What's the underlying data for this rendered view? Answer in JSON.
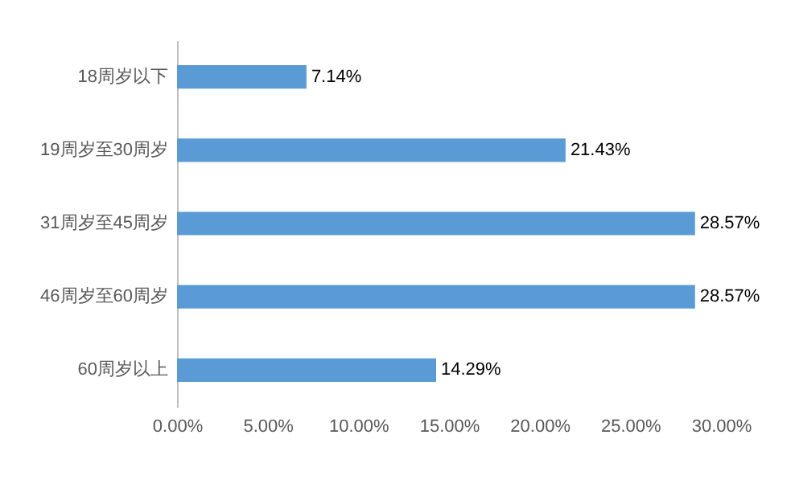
{
  "chart_data": {
    "type": "bar",
    "orientation": "horizontal",
    "categories": [
      "18周岁以下",
      "19周岁至30周岁",
      "31周岁至45周岁",
      "46周岁至60周岁",
      "60周岁以上"
    ],
    "values": [
      7.14,
      21.43,
      28.57,
      28.57,
      14.29
    ],
    "value_labels": [
      "7.14%",
      "21.43%",
      "28.57%",
      "28.57%",
      "14.29%"
    ],
    "color": "#5b9bd5",
    "xlim": [
      0,
      30
    ],
    "xticks": [
      {
        "value": 0,
        "label": "0.00%"
      },
      {
        "value": 5,
        "label": "5.00%"
      },
      {
        "value": 10,
        "label": "10.00%"
      },
      {
        "value": 15,
        "label": "15.00%"
      },
      {
        "value": 20,
        "label": "20.00%"
      },
      {
        "value": 25,
        "label": "25.00%"
      },
      {
        "value": 30,
        "label": "30.00%"
      }
    ]
  }
}
